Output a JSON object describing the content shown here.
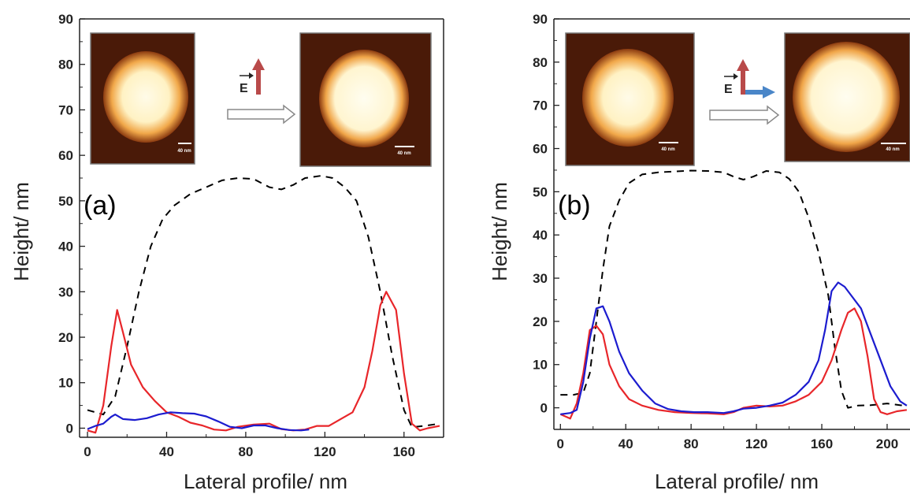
{
  "chart_data": [
    {
      "type": "line",
      "panel_label": "(a)",
      "xlabel": "Lateral profile/ nm",
      "ylabel": "Height/ nm",
      "xlim": [
        -4,
        180
      ],
      "ylim": [
        -2,
        90
      ],
      "x_ticks": [
        0,
        40,
        80,
        120,
        160
      ],
      "y_ticks": [
        0,
        10,
        20,
        30,
        40,
        50,
        60,
        70,
        80,
        90
      ],
      "grid": false,
      "field_label": "E",
      "scale_bar_label": "40 nm",
      "series": [
        {
          "color": "#000000",
          "dash": true,
          "points": [
            [
              0,
              4
            ],
            [
              8,
              3
            ],
            [
              14,
              7
            ],
            [
              20,
              18
            ],
            [
              26,
              30
            ],
            [
              32,
              40
            ],
            [
              38,
              46
            ],
            [
              44,
              49
            ],
            [
              52,
              51.5
            ],
            [
              60,
              53
            ],
            [
              68,
              54.5
            ],
            [
              76,
              55
            ],
            [
              84,
              54.8
            ],
            [
              92,
              53
            ],
            [
              98,
              52.5
            ],
            [
              104,
              53.5
            ],
            [
              110,
              55
            ],
            [
              118,
              55.5
            ],
            [
              124,
              55
            ],
            [
              130,
              53
            ],
            [
              136,
              50
            ],
            [
              142,
              42
            ],
            [
              148,
              30
            ],
            [
              154,
              16
            ],
            [
              160,
              4
            ],
            [
              164,
              0.2
            ],
            [
              170,
              0.5
            ],
            [
              178,
              1
            ]
          ]
        },
        {
          "color": "#e8262a",
          "dash": false,
          "points": [
            [
              0,
              -0.5
            ],
            [
              4,
              -1
            ],
            [
              8,
              5
            ],
            [
              12,
              18
            ],
            [
              15,
              26
            ],
            [
              18,
              21
            ],
            [
              22,
              14
            ],
            [
              28,
              9
            ],
            [
              34,
              6
            ],
            [
              40,
              3.5
            ],
            [
              46,
              2.5
            ],
            [
              52,
              1.2
            ],
            [
              58,
              0.6
            ],
            [
              64,
              -0.3
            ],
            [
              70,
              -0.5
            ],
            [
              76,
              0.3
            ],
            [
              84,
              0.8
            ],
            [
              92,
              1
            ],
            [
              98,
              -0.2
            ],
            [
              104,
              -0.5
            ],
            [
              110,
              -0.3
            ],
            [
              116,
              0.5
            ],
            [
              122,
              0.5
            ],
            [
              128,
              2
            ],
            [
              134,
              3.5
            ],
            [
              140,
              9
            ],
            [
              144,
              17
            ],
            [
              148,
              27
            ],
            [
              151,
              30
            ],
            [
              156,
              26
            ],
            [
              160,
              12
            ],
            [
              164,
              1
            ],
            [
              168,
              -0.5
            ],
            [
              172,
              0
            ],
            [
              178,
              0.5
            ]
          ]
        },
        {
          "color": "#1c1ccf",
          "dash": false,
          "points": [
            [
              0,
              -0.2
            ],
            [
              4,
              0.5
            ],
            [
              8,
              1
            ],
            [
              12,
              2.5
            ],
            [
              14,
              3
            ],
            [
              18,
              2
            ],
            [
              24,
              1.8
            ],
            [
              30,
              2.2
            ],
            [
              36,
              3
            ],
            [
              42,
              3.5
            ],
            [
              48,
              3.3
            ],
            [
              54,
              3.2
            ],
            [
              60,
              2.6
            ],
            [
              66,
              1.5
            ],
            [
              72,
              0.3
            ],
            [
              78,
              0
            ],
            [
              84,
              0.6
            ],
            [
              90,
              0.6
            ],
            [
              96,
              0
            ],
            [
              102,
              -0.4
            ],
            [
              108,
              -0.5
            ],
            [
              112,
              -0.3
            ]
          ]
        }
      ]
    },
    {
      "type": "line",
      "panel_label": "(b)",
      "xlabel": "Lateral profile/ nm",
      "ylabel": "Height/ nm",
      "xlim": [
        -4,
        214
      ],
      "ylim": [
        -5,
        90
      ],
      "x_ticks": [
        0,
        40,
        80,
        120,
        160,
        200
      ],
      "y_ticks": [
        0,
        10,
        20,
        30,
        40,
        50,
        60,
        70,
        80,
        90
      ],
      "grid": false,
      "field_label": "E",
      "scale_bar_label": "40 nm",
      "series": [
        {
          "color": "#000000",
          "dash": true,
          "points": [
            [
              0,
              3
            ],
            [
              8,
              3
            ],
            [
              14,
              3.5
            ],
            [
              18,
              8
            ],
            [
              22,
              20
            ],
            [
              26,
              32
            ],
            [
              30,
              42
            ],
            [
              36,
              48
            ],
            [
              42,
              52
            ],
            [
              50,
              54
            ],
            [
              60,
              54.5
            ],
            [
              70,
              54.7
            ],
            [
              80,
              54.9
            ],
            [
              90,
              54.8
            ],
            [
              100,
              54.5
            ],
            [
              106,
              53.5
            ],
            [
              112,
              52.8
            ],
            [
              118,
              53.5
            ],
            [
              126,
              54.8
            ],
            [
              134,
              54.5
            ],
            [
              140,
              53
            ],
            [
              146,
              50
            ],
            [
              152,
              44
            ],
            [
              158,
              36
            ],
            [
              164,
              26
            ],
            [
              168,
              14
            ],
            [
              172,
              4
            ],
            [
              176,
              0
            ],
            [
              182,
              0.5
            ],
            [
              190,
              0.6
            ],
            [
              200,
              1
            ],
            [
              210,
              0.5
            ]
          ]
        },
        {
          "color": "#e8262a",
          "dash": false,
          "points": [
            [
              0,
              -1.5
            ],
            [
              6,
              -2.5
            ],
            [
              10,
              1
            ],
            [
              14,
              8
            ],
            [
              18,
              18
            ],
            [
              22,
              19
            ],
            [
              26,
              17
            ],
            [
              30,
              10
            ],
            [
              36,
              5
            ],
            [
              42,
              2
            ],
            [
              50,
              0.5
            ],
            [
              60,
              -0.5
            ],
            [
              70,
              -1
            ],
            [
              80,
              -1.2
            ],
            [
              90,
              -1.3
            ],
            [
              100,
              -1.5
            ],
            [
              106,
              -1
            ],
            [
              112,
              0
            ],
            [
              120,
              0.5
            ],
            [
              128,
              0.3
            ],
            [
              136,
              0.5
            ],
            [
              144,
              1.5
            ],
            [
              152,
              3
            ],
            [
              160,
              6
            ],
            [
              166,
              11
            ],
            [
              172,
              18
            ],
            [
              176,
              22
            ],
            [
              180,
              23
            ],
            [
              184,
              20
            ],
            [
              188,
              12
            ],
            [
              192,
              2
            ],
            [
              196,
              -1
            ],
            [
              200,
              -1.5
            ],
            [
              206,
              -0.8
            ],
            [
              212,
              -0.5
            ]
          ]
        },
        {
          "color": "#1c1ccf",
          "dash": false,
          "points": [
            [
              0,
              -1.5
            ],
            [
              6,
              -1.2
            ],
            [
              10,
              -0.5
            ],
            [
              14,
              6
            ],
            [
              18,
              16
            ],
            [
              22,
              23
            ],
            [
              26,
              23.5
            ],
            [
              30,
              20
            ],
            [
              36,
              13
            ],
            [
              42,
              8
            ],
            [
              50,
              4
            ],
            [
              58,
              1
            ],
            [
              66,
              -0.3
            ],
            [
              74,
              -0.8
            ],
            [
              82,
              -1
            ],
            [
              90,
              -1
            ],
            [
              100,
              -1.2
            ],
            [
              106,
              -0.8
            ],
            [
              112,
              -0.2
            ],
            [
              120,
              0
            ],
            [
              128,
              0.5
            ],
            [
              136,
              1.2
            ],
            [
              144,
              3
            ],
            [
              152,
              6
            ],
            [
              158,
              11
            ],
            [
              162,
              18
            ],
            [
              166,
              27
            ],
            [
              170,
              29
            ],
            [
              174,
              28
            ],
            [
              178,
              26
            ],
            [
              184,
              23
            ],
            [
              190,
              17
            ],
            [
              196,
              11
            ],
            [
              202,
              5
            ],
            [
              208,
              1.5
            ],
            [
              212,
              0.5
            ]
          ]
        }
      ]
    }
  ]
}
